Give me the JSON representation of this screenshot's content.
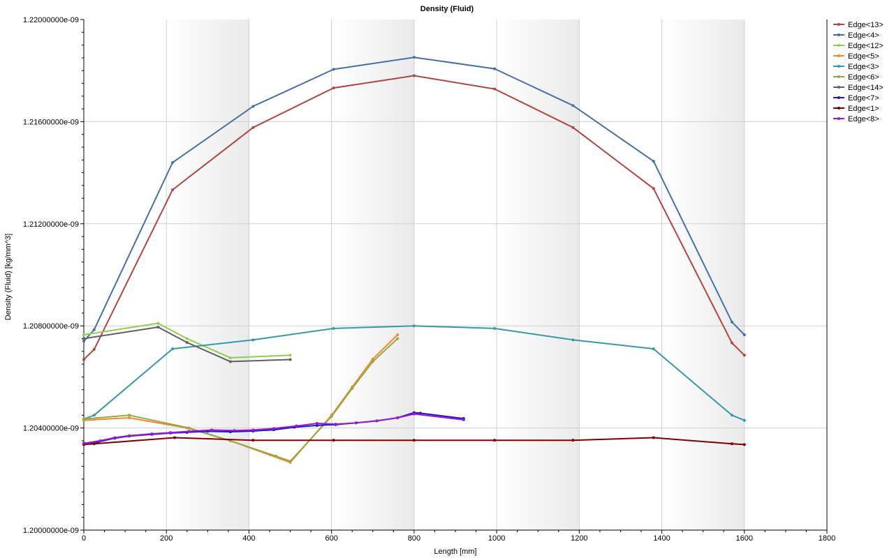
{
  "chart_data": {
    "type": "line",
    "title": "Density (Fluid)",
    "xlabel": "Length [mm]",
    "ylabel": "Density (Fluid) [kg/mm^3]",
    "xlim": [
      0,
      1800
    ],
    "ylim": [
      1.2e-09,
      1.22e-09
    ],
    "x_ticks": [
      "0",
      "200",
      "400",
      "600",
      "800",
      "1000",
      "1200",
      "1400",
      "1600",
      "1800"
    ],
    "y_ticks": [
      "1.20000000e-09",
      "1.20400000e-09",
      "1.20800000e-09",
      "1.21200000e-09",
      "1.21600000e-09",
      "1.22000000e-09"
    ],
    "grid": true,
    "legend_position": "right",
    "series": [
      {
        "name": "Edge<13>",
        "color": "#b04545",
        "x": [
          0,
          25,
          215,
          410,
          605,
          800,
          995,
          1185,
          1380,
          1570,
          1600
        ],
        "y": [
          1.20668e-09,
          1.20708e-09,
          1.21333e-09,
          1.21577e-09,
          1.21732e-09,
          1.2178e-09,
          1.21728e-09,
          1.21577e-09,
          1.21338e-09,
          1.20733e-09,
          1.20685e-09
        ]
      },
      {
        "name": "Edge<4>",
        "color": "#4470a8",
        "x": [
          0,
          25,
          215,
          410,
          605,
          800,
          995,
          1185,
          1380,
          1570,
          1600
        ],
        "y": [
          1.2074e-09,
          1.20785e-09,
          1.2144e-09,
          1.2166e-09,
          1.21805e-09,
          1.21852e-09,
          1.21807e-09,
          1.21663e-09,
          1.21445e-09,
          1.20815e-09,
          1.20765e-09
        ]
      },
      {
        "name": "Edge<12>",
        "color": "#8fce50",
        "x": [
          0,
          180,
          250,
          355,
          500
        ],
        "y": [
          1.20765e-09,
          1.2081e-09,
          1.2075e-09,
          1.20675e-09,
          1.20685e-09
        ]
      },
      {
        "name": "Edge<5>",
        "color": "#ee8a30",
        "x": [
          0,
          110,
          250,
          355,
          500,
          600,
          650,
          700,
          760
        ],
        "y": [
          1.2043e-09,
          1.2044e-09,
          1.204e-09,
          1.2035e-09,
          1.20265e-09,
          1.2045e-09,
          1.2056e-09,
          1.2067e-09,
          1.20765e-09
        ]
      },
      {
        "name": "Edge<3>",
        "color": "#3898a8",
        "x": [
          0,
          25,
          215,
          410,
          605,
          800,
          995,
          1185,
          1380,
          1570,
          1600
        ],
        "y": [
          1.20435e-09,
          1.2045e-09,
          1.2071e-09,
          1.20745e-09,
          1.2079e-09,
          1.208e-09,
          1.2079e-09,
          1.20745e-09,
          1.2071e-09,
          1.2045e-09,
          1.2043e-09
        ]
      },
      {
        "name": "Edge<6>",
        "color": "#98a840",
        "x": [
          0,
          110,
          255,
          355,
          465,
          500,
          600,
          650,
          700,
          760
        ],
        "y": [
          1.20435e-09,
          1.2045e-09,
          1.204e-09,
          1.2035e-09,
          1.2029e-09,
          1.2027e-09,
          1.20445e-09,
          1.20555e-09,
          1.2066e-09,
          1.2075e-09
        ]
      },
      {
        "name": "Edge<14>",
        "color": "#606060",
        "x": [
          0,
          180,
          250,
          355,
          500
        ],
        "y": [
          1.2075e-09,
          1.20795e-09,
          1.20735e-09,
          1.2066e-09,
          1.20668e-09
        ]
      },
      {
        "name": "Edge<7>",
        "color": "#1818d0",
        "x": [
          0,
          35,
          75,
          110,
          165,
          210,
          250,
          300,
          355,
          410,
          460,
          510,
          565,
          610,
          660,
          710,
          760,
          800,
          815,
          920
        ],
        "y": [
          1.2034e-09,
          1.20345e-09,
          1.2036e-09,
          1.20368e-09,
          1.20375e-09,
          1.2038e-09,
          1.20383e-09,
          1.20387e-09,
          1.20385e-09,
          1.20388e-09,
          1.20393e-09,
          1.20403e-09,
          1.2041e-09,
          1.20413e-09,
          1.2042e-09,
          1.20428e-09,
          1.2044e-09,
          1.2046e-09,
          1.20458e-09,
          1.20437e-09
        ]
      },
      {
        "name": "Edge<1>",
        "color": "#800000",
        "x": [
          0,
          25,
          220,
          410,
          605,
          800,
          995,
          1185,
          1380,
          1570,
          1600
        ],
        "y": [
          1.20335e-09,
          1.20338e-09,
          1.20362e-09,
          1.20352e-09,
          1.20352e-09,
          1.20352e-09,
          1.20352e-09,
          1.20352e-09,
          1.20362e-09,
          1.20338e-09,
          1.20335e-09
        ]
      },
      {
        "name": "Edge<8>",
        "color": "#9a1ad0",
        "x": [
          0,
          40,
          75,
          110,
          165,
          210,
          255,
          310,
          365,
          410,
          460,
          515,
          565,
          610,
          660,
          710,
          760,
          800,
          920
        ],
        "y": [
          1.2034e-09,
          1.2035e-09,
          1.20362e-09,
          1.2037e-09,
          1.20377e-09,
          1.20382e-09,
          1.20387e-09,
          1.20392e-09,
          1.2039e-09,
          1.20392e-09,
          1.20398e-09,
          1.20408e-09,
          1.20418e-09,
          1.20415e-09,
          1.2042e-09,
          1.20428e-09,
          1.2044e-09,
          1.20455e-09,
          1.20432e-09
        ]
      }
    ]
  }
}
